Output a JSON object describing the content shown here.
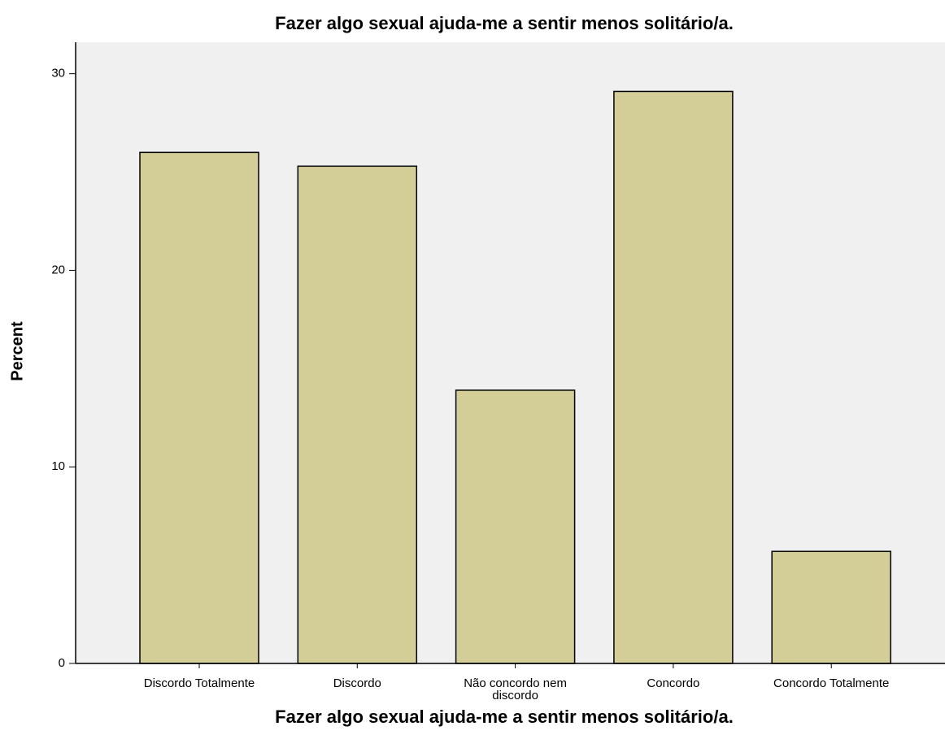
{
  "chart_data": {
    "type": "bar",
    "title": "Fazer algo sexual ajuda-me a sentir menos solitário/a.",
    "xlabel": "Fazer algo sexual ajuda-me a sentir menos solitário/a.",
    "ylabel": "Percent",
    "categories": [
      "Discordo Totalmente",
      "Discordo",
      "Não concordo nem discordo",
      "Concordo",
      "Concordo Totalmente"
    ],
    "values": [
      26.0,
      25.3,
      13.9,
      29.1,
      5.7
    ],
    "color": "#d3ce97",
    "ylim": [
      0,
      31.6
    ],
    "yticks": [
      0,
      10,
      20,
      30
    ],
    "grid": false
  }
}
